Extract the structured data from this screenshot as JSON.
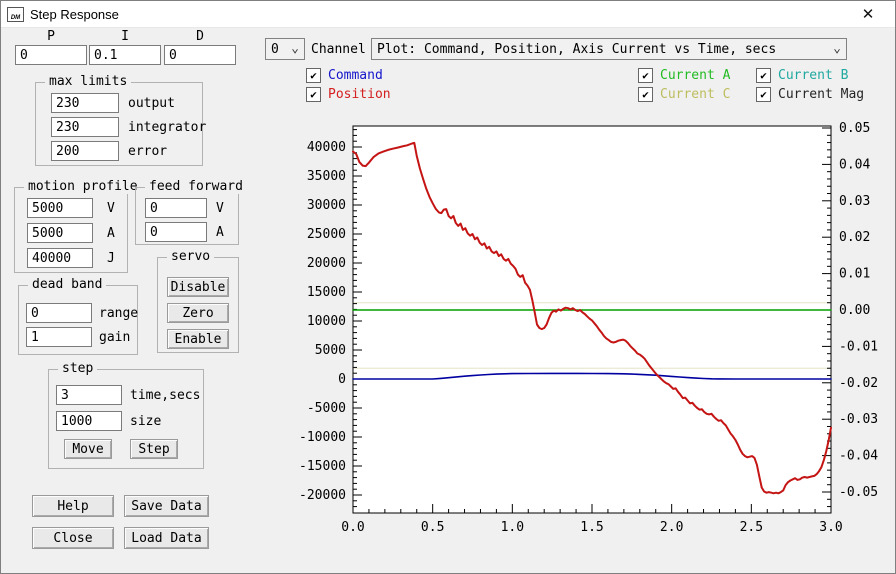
{
  "window": {
    "title": "Step Response",
    "close_glyph": "✕",
    "icon_text": "DM"
  },
  "pid": {
    "p_label": "P",
    "i_label": "I",
    "d_label": "D",
    "p": "0",
    "i": "0.1",
    "d": "0"
  },
  "channel": {
    "value": "0",
    "label": "Channel"
  },
  "plot_select": {
    "value": "Plot: Command, Position, Axis Current vs Time, secs"
  },
  "legend": {
    "command": {
      "label": "Command",
      "color": "#1515cc",
      "checked": true
    },
    "position": {
      "label": "Position",
      "color": "#d42020",
      "checked": true
    },
    "current_a": {
      "label": "Current A",
      "color": "#22bb22",
      "checked": true
    },
    "current_b": {
      "label": "Current B",
      "color": "#1fa8a0",
      "checked": true
    },
    "current_c": {
      "label": "Current C",
      "color": "#bdbd5e",
      "checked": true
    },
    "current_mag": {
      "label": "Current Mag",
      "color": "#262626",
      "checked": true
    }
  },
  "max_limits": {
    "title": "max limits",
    "output": {
      "value": "230",
      "label": "output"
    },
    "integrator": {
      "value": "230",
      "label": "integrator"
    },
    "error": {
      "value": "200",
      "label": "error"
    }
  },
  "motion_profile": {
    "title": "motion profile",
    "v": {
      "value": "5000",
      "label": "V"
    },
    "a": {
      "value": "5000",
      "label": "A"
    },
    "j": {
      "value": "40000",
      "label": "J"
    }
  },
  "feed_forward": {
    "title": "feed forward",
    "v": {
      "value": "0",
      "label": "V"
    },
    "a": {
      "value": "0",
      "label": "A"
    }
  },
  "servo": {
    "title": "servo",
    "disable": "Disable",
    "zero": "Zero",
    "enable": "Enable"
  },
  "dead_band": {
    "title": "dead band",
    "range": {
      "value": "0",
      "label": "range"
    },
    "gain": {
      "value": "1",
      "label": "gain"
    }
  },
  "step": {
    "title": "step",
    "time": {
      "value": "3",
      "label": "time,secs"
    },
    "size": {
      "value": "1000",
      "label": "size"
    },
    "move_button": "Move",
    "step_button": "Step"
  },
  "footer": {
    "help": "Help",
    "save": "Save Data",
    "close": "Close",
    "load": "Load Data"
  },
  "chart_data": {
    "type": "line",
    "title": "Plot: Command, Position, Axis Current vs Time, secs",
    "legend_position": "top-checkboxes",
    "x_axis": {
      "min": 0,
      "max": 3,
      "major_step": 0.5,
      "minor_step": 0.1,
      "tick_labels": [
        "0.0",
        "0.5",
        "1.0",
        "1.5",
        "2.0",
        "2.5",
        "3.0"
      ]
    },
    "y_left_axis": {
      "min": -20000,
      "max": 40000,
      "major_step": 5000,
      "minor_step": 1000
    },
    "y_right_axis": {
      "min": -0.05,
      "max": 0.05,
      "major_step": 0.01,
      "minor_step": 0.002
    },
    "grid": false,
    "faint_traces": [
      {
        "axis": "right",
        "value": 0.002,
        "color": "#e6e6c8"
      },
      {
        "axis": "right",
        "value": -0.016,
        "color": "#e6e6c8"
      }
    ],
    "series": [
      {
        "name": "Current A",
        "axis": "right",
        "color": "#00a000",
        "width": 1.6,
        "points": [
          [
            0,
            0
          ],
          [
            3,
            0
          ]
        ]
      },
      {
        "name": "Command",
        "axis": "left",
        "color": "#0000a0",
        "width": 1.6,
        "points": [
          [
            0,
            0
          ],
          [
            0.5,
            0
          ],
          [
            0.55,
            100
          ],
          [
            0.6,
            230
          ],
          [
            0.65,
            360
          ],
          [
            0.7,
            480
          ],
          [
            0.75,
            590
          ],
          [
            0.8,
            690
          ],
          [
            0.85,
            780
          ],
          [
            0.9,
            850
          ],
          [
            0.95,
            900
          ],
          [
            1,
            930
          ],
          [
            1.1,
            950
          ],
          [
            1.25,
            960
          ],
          [
            1.4,
            960
          ],
          [
            1.5,
            950
          ],
          [
            1.6,
            930
          ],
          [
            1.7,
            890
          ],
          [
            1.75,
            850
          ],
          [
            1.8,
            800
          ],
          [
            1.85,
            730
          ],
          [
            1.9,
            650
          ],
          [
            1.95,
            550
          ],
          [
            2,
            450
          ],
          [
            2.05,
            350
          ],
          [
            2.1,
            250
          ],
          [
            2.15,
            160
          ],
          [
            2.2,
            90
          ],
          [
            2.25,
            40
          ],
          [
            2.3,
            10
          ],
          [
            2.4,
            0
          ],
          [
            3,
            0
          ]
        ]
      },
      {
        "name": "Position",
        "axis": "left",
        "color": "#c41414",
        "width": 2,
        "points": [
          [
            0,
            39200
          ],
          [
            0.02,
            38800
          ],
          [
            0.04,
            37400
          ],
          [
            0.06,
            36800
          ],
          [
            0.08,
            36700
          ],
          [
            0.1,
            37300
          ],
          [
            0.13,
            38300
          ],
          [
            0.16,
            38900
          ],
          [
            0.19,
            39200
          ],
          [
            0.22,
            39500
          ],
          [
            0.25,
            39700
          ],
          [
            0.28,
            39900
          ],
          [
            0.31,
            40100
          ],
          [
            0.34,
            40300
          ],
          [
            0.37,
            40600
          ],
          [
            0.385,
            40700
          ],
          [
            0.4,
            38500
          ],
          [
            0.42,
            36300
          ],
          [
            0.44,
            34500
          ],
          [
            0.46,
            32800
          ],
          [
            0.48,
            31400
          ],
          [
            0.5,
            30300
          ],
          [
            0.52,
            29300
          ],
          [
            0.54,
            28700
          ],
          [
            0.555,
            28600
          ],
          [
            0.57,
            29200
          ],
          [
            0.585,
            29300
          ],
          [
            0.6,
            28100
          ],
          [
            0.615,
            27700
          ],
          [
            0.63,
            28100
          ],
          [
            0.645,
            26900
          ],
          [
            0.66,
            26400
          ],
          [
            0.675,
            26800
          ],
          [
            0.69,
            25700
          ],
          [
            0.705,
            26000
          ],
          [
            0.72,
            25100
          ],
          [
            0.735,
            24700
          ],
          [
            0.75,
            25000
          ],
          [
            0.765,
            24100
          ],
          [
            0.78,
            24400
          ],
          [
            0.795,
            23500
          ],
          [
            0.81,
            23100
          ],
          [
            0.825,
            23400
          ],
          [
            0.84,
            22500
          ],
          [
            0.855,
            22800
          ],
          [
            0.87,
            22000
          ],
          [
            0.885,
            21700
          ],
          [
            0.9,
            22000
          ],
          [
            0.915,
            21200
          ],
          [
            0.93,
            21500
          ],
          [
            0.945,
            20700
          ],
          [
            0.96,
            20400
          ],
          [
            0.975,
            20700
          ],
          [
            0.99,
            19900
          ],
          [
            1.005,
            19500
          ],
          [
            1.02,
            19000
          ],
          [
            1.035,
            18000
          ],
          [
            1.05,
            17600
          ],
          [
            1.065,
            17900
          ],
          [
            1.08,
            16600
          ],
          [
            1.095,
            16100
          ],
          [
            1.11,
            15400
          ],
          [
            1.125,
            13600
          ],
          [
            1.14,
            11600
          ],
          [
            1.155,
            9400
          ],
          [
            1.17,
            8800
          ],
          [
            1.185,
            8600
          ],
          [
            1.2,
            8800
          ],
          [
            1.215,
            9400
          ],
          [
            1.23,
            10500
          ],
          [
            1.245,
            11400
          ],
          [
            1.26,
            11800
          ],
          [
            1.275,
            11600
          ],
          [
            1.29,
            12000
          ],
          [
            1.305,
            11800
          ],
          [
            1.32,
            12100
          ],
          [
            1.335,
            12300
          ],
          [
            1.35,
            12200
          ],
          [
            1.365,
            12000
          ],
          [
            1.38,
            12200
          ],
          [
            1.395,
            11900
          ],
          [
            1.41,
            11700
          ],
          [
            1.425,
            11900
          ],
          [
            1.44,
            11500
          ],
          [
            1.455,
            11200
          ],
          [
            1.47,
            10800
          ],
          [
            1.485,
            10400
          ],
          [
            1.5,
            10100
          ],
          [
            1.515,
            9600
          ],
          [
            1.53,
            9100
          ],
          [
            1.545,
            8500
          ],
          [
            1.56,
            8000
          ],
          [
            1.575,
            7400
          ],
          [
            1.59,
            7000
          ],
          [
            1.605,
            6700
          ],
          [
            1.62,
            6400
          ],
          [
            1.635,
            6300
          ],
          [
            1.65,
            6400
          ],
          [
            1.665,
            6600
          ],
          [
            1.68,
            6700
          ],
          [
            1.695,
            6800
          ],
          [
            1.71,
            6600
          ],
          [
            1.725,
            6200
          ],
          [
            1.74,
            5700
          ],
          [
            1.755,
            5300
          ],
          [
            1.77,
            4900
          ],
          [
            1.785,
            4400
          ],
          [
            1.8,
            4200
          ],
          [
            1.815,
            3900
          ],
          [
            1.83,
            3500
          ],
          [
            1.845,
            2900
          ],
          [
            1.86,
            2300
          ],
          [
            1.875,
            1800
          ],
          [
            1.89,
            1300
          ],
          [
            1.905,
            800
          ],
          [
            1.92,
            400
          ],
          [
            1.935,
            0
          ],
          [
            1.95,
            -400
          ],
          [
            1.965,
            -700
          ],
          [
            1.98,
            -900
          ],
          [
            1.995,
            -1300
          ],
          [
            2.01,
            -1700
          ],
          [
            2.025,
            -1600
          ],
          [
            2.04,
            -2200
          ],
          [
            2.055,
            -2700
          ],
          [
            2.07,
            -3300
          ],
          [
            2.085,
            -3200
          ],
          [
            2.1,
            -3700
          ],
          [
            2.115,
            -4200
          ],
          [
            2.13,
            -4100
          ],
          [
            2.145,
            -4600
          ],
          [
            2.16,
            -5000
          ],
          [
            2.175,
            -5300
          ],
          [
            2.19,
            -5200
          ],
          [
            2.205,
            -5700
          ],
          [
            2.22,
            -6000
          ],
          [
            2.235,
            -6100
          ],
          [
            2.25,
            -6000
          ],
          [
            2.265,
            -6500
          ],
          [
            2.28,
            -6900
          ],
          [
            2.295,
            -7200
          ],
          [
            2.31,
            -7100
          ],
          [
            2.325,
            -7600
          ],
          [
            2.34,
            -8000
          ],
          [
            2.355,
            -8700
          ],
          [
            2.37,
            -9400
          ],
          [
            2.385,
            -9900
          ],
          [
            2.4,
            -10500
          ],
          [
            2.415,
            -11300
          ],
          [
            2.43,
            -12200
          ],
          [
            2.445,
            -12900
          ],
          [
            2.46,
            -13300
          ],
          [
            2.475,
            -13500
          ],
          [
            2.49,
            -13400
          ],
          [
            2.505,
            -13300
          ],
          [
            2.52,
            -13600
          ],
          [
            2.535,
            -14800
          ],
          [
            2.55,
            -16800
          ],
          [
            2.565,
            -18700
          ],
          [
            2.58,
            -19400
          ],
          [
            2.595,
            -19600
          ],
          [
            2.61,
            -19500
          ],
          [
            2.625,
            -19600
          ],
          [
            2.64,
            -19700
          ],
          [
            2.655,
            -19600
          ],
          [
            2.67,
            -19700
          ],
          [
            2.685,
            -19500
          ],
          [
            2.7,
            -19200
          ],
          [
            2.715,
            -18300
          ],
          [
            2.73,
            -17800
          ],
          [
            2.745,
            -17500
          ],
          [
            2.76,
            -17300
          ],
          [
            2.775,
            -17100
          ],
          [
            2.79,
            -17400
          ],
          [
            2.805,
            -17300
          ],
          [
            2.82,
            -17000
          ],
          [
            2.835,
            -16900
          ],
          [
            2.85,
            -17000
          ],
          [
            2.865,
            -16900
          ],
          [
            2.88,
            -16800
          ],
          [
            2.895,
            -16700
          ],
          [
            2.91,
            -16400
          ],
          [
            2.925,
            -15900
          ],
          [
            2.94,
            -15200
          ],
          [
            2.955,
            -14000
          ],
          [
            2.97,
            -12500
          ],
          [
            2.985,
            -10600
          ],
          [
            3,
            -8400
          ]
        ]
      }
    ]
  }
}
